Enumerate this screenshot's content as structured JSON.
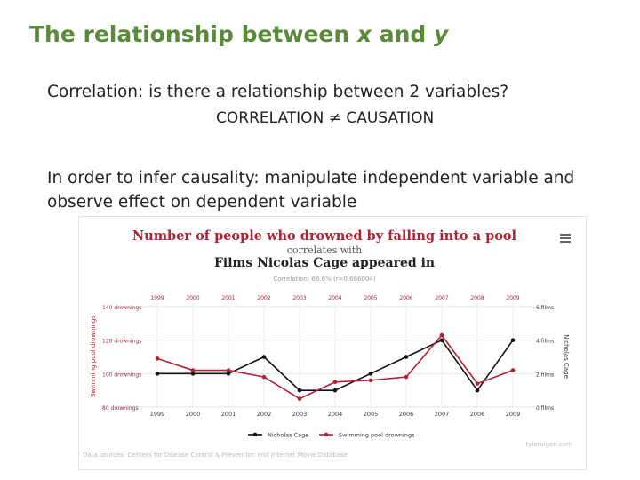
{
  "slide": {
    "title_main": "The relationship between ",
    "title_x": "x",
    "title_and": " and ",
    "title_y": "y",
    "paragraph1": "Correlation: is there a relationship between 2 variables?",
    "paragraph2": "CORRELATION ≠ CAUSATION",
    "paragraph3_line1": "In order to infer causality: manipulate independent variable and",
    "paragraph3_line2": "observe effect on dependent variable"
  },
  "chart_data": {
    "type": "line",
    "title": "Number of people who drowned by falling into a pool",
    "subtitle1": "correlates with",
    "subtitle2": "Films Nicolas Cage appeared in",
    "correlation_note": "Correlation: 66.6% (r=0.666004)",
    "x": [
      1999,
      2000,
      2001,
      2002,
      2003,
      2004,
      2005,
      2006,
      2007,
      2008,
      2009
    ],
    "x_top_labels": [
      "1999",
      "2000",
      "2001",
      "2002",
      "2003",
      "2004",
      "2005",
      "2006",
      "2007",
      "2008",
      "2009"
    ],
    "left_axis": {
      "label": "Swimming pool drownings",
      "ticks": [
        "140 drownings",
        "120 drownings",
        "100 drownings",
        "80 drownings"
      ],
      "ylim": [
        80,
        140
      ]
    },
    "right_axis": {
      "label": "Nicholas Cage",
      "ticks": [
        "6 films",
        "4 films",
        "2 films",
        "0 films"
      ],
      "ylim": [
        0,
        6
      ]
    },
    "series": [
      {
        "name": "Nicholas Cage",
        "axis": "right",
        "color": "#111111",
        "values": [
          2,
          2,
          2,
          3,
          1,
          1,
          2,
          3,
          4,
          1,
          4
        ]
      },
      {
        "name": "Swimming pool drownings",
        "axis": "left",
        "color": "#b22033",
        "values": [
          109,
          102,
          102,
          98,
          85,
          95,
          96,
          98,
          123,
          94,
          102
        ]
      }
    ],
    "source": "Data sources: Centers for Disease Control & Prevention and Internet Movie Database",
    "credit": "tylervigen.com",
    "grid": true,
    "legend_position": "bottom"
  }
}
